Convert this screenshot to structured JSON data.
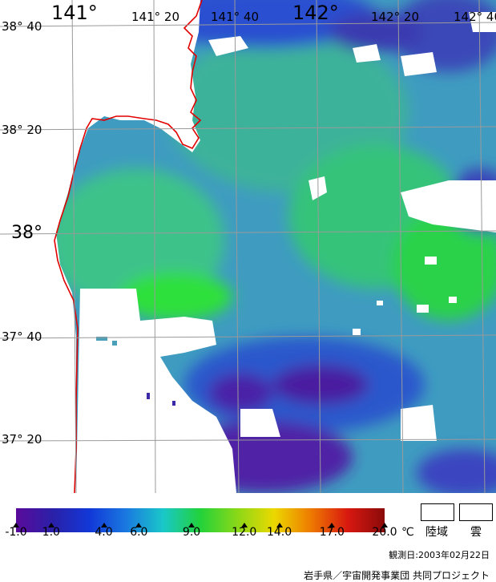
{
  "map": {
    "longitude_labels": [
      {
        "text": "141°",
        "kind": "major"
      },
      {
        "text": "141° 20",
        "kind": "minor"
      },
      {
        "text": "141° 40",
        "kind": "minor"
      },
      {
        "text": "142°",
        "kind": "major"
      },
      {
        "text": "142° 20",
        "kind": "minor"
      },
      {
        "text": "142° 40",
        "kind": "minor"
      }
    ],
    "latitude_labels": [
      {
        "text": "38° 40",
        "kind": "minor"
      },
      {
        "text": "38° 20",
        "kind": "minor"
      },
      {
        "text": "38°",
        "kind": "major"
      },
      {
        "text": "37° 40",
        "kind": "minor"
      },
      {
        "text": "37° 20",
        "kind": "minor"
      }
    ],
    "colors": {
      "grid": "#9a9a9a",
      "coastline": "#e00000",
      "land": "#ffffff",
      "cloud": "#ffffff",
      "sea_cool": "#2f54c8",
      "sea_mid": "#3fa8a0",
      "sea_warm": "#33d13a",
      "sea_cold": "#5a1aa8"
    }
  },
  "legend": {
    "ticks": [
      "-1.0",
      "1.0",
      "4.0",
      "6.0",
      "9.0",
      "12.0",
      "14.0",
      "17.0",
      "20.0"
    ],
    "tick_values": [
      -1,
      1,
      4,
      6,
      9,
      12,
      14,
      17,
      20
    ],
    "range": [
      -1,
      20
    ],
    "unit": "℃",
    "scale_colors": [
      "#5a0a9a",
      "#2a20a8",
      "#1238d8",
      "#1a7ae0",
      "#19c8c8",
      "#22d23a",
      "#8ad818",
      "#ecd800",
      "#ee7a00",
      "#d81810",
      "#8a0a0a"
    ],
    "land_label": "陸域",
    "cloud_label": "雲"
  },
  "observation_date": "観測日:2003年02月22日",
  "credit": "岩手県／宇宙開発事業団 共同プロジェクト"
}
